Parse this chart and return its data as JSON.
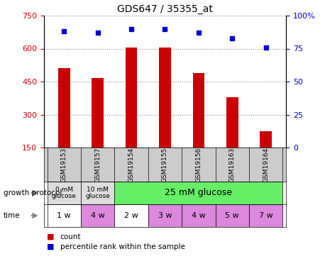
{
  "title": "GDS647 / 35355_at",
  "samples": [
    "GSM19153",
    "GSM19157",
    "GSM19154",
    "GSM19155",
    "GSM19156",
    "GSM19163",
    "GSM19164"
  ],
  "counts": [
    510,
    465,
    605,
    605,
    490,
    380,
    225
  ],
  "percentiles": [
    88,
    87,
    90,
    90,
    87,
    83,
    76
  ],
  "left_ylim": [
    150,
    750
  ],
  "left_yticks": [
    150,
    300,
    450,
    600,
    750
  ],
  "right_ylim": [
    0,
    100
  ],
  "right_yticks": [
    0,
    25,
    50,
    75,
    100
  ],
  "bar_color": "#cc0000",
  "dot_color": "#0000cc",
  "left_tick_color": "#cc0000",
  "right_tick_color": "#0000cc",
  "growth_groups": [
    {
      "label": "0 mM\nglucose",
      "start": 0,
      "end": 1,
      "color": "#dddddd"
    },
    {
      "label": "10 mM\nglucose",
      "start": 1,
      "end": 2,
      "color": "#dddddd"
    },
    {
      "label": "25 mM glucose",
      "start": 2,
      "end": 7,
      "color": "#66ee66"
    }
  ],
  "time": [
    "1 w",
    "4 w",
    "2 w",
    "3 w",
    "4 w",
    "5 w",
    "7 w"
  ],
  "time_colors": [
    "#ffffff",
    "#dd88dd",
    "#ffffff",
    "#dd88dd",
    "#dd88dd",
    "#dd88dd",
    "#dd88dd"
  ],
  "grid_color": "#888888",
  "background_color": "#ffffff",
  "bar_width": 0.35
}
